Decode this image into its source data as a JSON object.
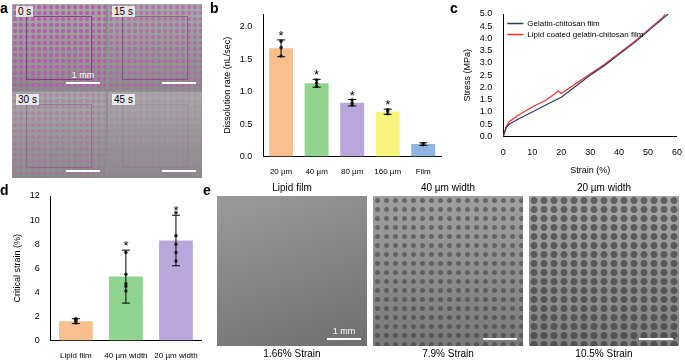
{
  "chart_data": [
    {
      "panel_label": "b",
      "type": "bar",
      "categories": [
        "20 µm",
        "40 µm",
        "80 µm",
        "160 µm",
        "Film"
      ],
      "values": [
        1.67,
        1.13,
        0.83,
        0.69,
        0.19
      ],
      "error": [
        0.13,
        0.06,
        0.05,
        0.04,
        0.02
      ],
      "points": [
        [
          1.55,
          1.68,
          1.78
        ],
        [
          1.08,
          1.13,
          1.18
        ],
        [
          0.79,
          0.82,
          0.87
        ],
        [
          0.66,
          0.7,
          0.72
        ],
        [
          0.18,
          0.19,
          0.2
        ]
      ],
      "significance": [
        "*",
        "*",
        "*",
        "*",
        null
      ],
      "colors": [
        "#f9c08f",
        "#8fd48f",
        "#b9a7dc",
        "#f6f47c",
        "#8fb6e2"
      ],
      "ylabel": "Dissolution rate (nL/sec)",
      "ylim": [
        0,
        2.2
      ],
      "yticks": [
        {
          "value": 0,
          "label": "0.0"
        },
        {
          "value": 0.5,
          "label": "0.5"
        },
        {
          "value": 1,
          "label": "1.0"
        },
        {
          "value": 1.5,
          "label": "1.5"
        },
        {
          "value": 2,
          "label": "2.0"
        }
      ],
      "grid": false
    },
    {
      "panel_label": "c",
      "type": "line",
      "series": [
        {
          "name": "Gelatin-chitosan film",
          "color": "#2f3a5f",
          "x": [
            0,
            1,
            2,
            5,
            10,
            15,
            20,
            25,
            30,
            35,
            40,
            45,
            50,
            55,
            57
          ],
          "values": [
            0,
            0.35,
            0.5,
            0.7,
            1.0,
            1.3,
            1.6,
            2.05,
            2.5,
            2.9,
            3.35,
            3.8,
            4.3,
            4.8,
            5.0
          ]
        },
        {
          "name": "Lipid coated gelatin-chitosan film",
          "color": "#e8312f",
          "x": [
            0,
            1,
            2,
            5,
            10,
            15,
            19,
            20,
            25,
            30,
            35,
            40,
            45,
            50,
            55,
            56
          ],
          "values": [
            0,
            0.4,
            0.6,
            0.85,
            1.2,
            1.5,
            1.85,
            1.75,
            2.15,
            2.55,
            2.95,
            3.4,
            3.85,
            4.35,
            4.85,
            5.0
          ]
        }
      ],
      "xlabel": "Strain (%)",
      "ylabel": "Stress (MPa)",
      "xlim": [
        0,
        60
      ],
      "xticks": [
        0,
        10,
        20,
        30,
        40,
        50,
        60
      ],
      "ylim": [
        0,
        5
      ],
      "yticks": [
        {
          "value": 0,
          "label": "0.0"
        },
        {
          "value": 0.5,
          "label": "0.5"
        },
        {
          "value": 1,
          "label": "1.0"
        },
        {
          "value": 1.5,
          "label": "1.5"
        },
        {
          "value": 2,
          "label": "2.0"
        },
        {
          "value": 2.5,
          "label": "2.5"
        },
        {
          "value": 3,
          "label": "3.0"
        },
        {
          "value": 3.5,
          "label": "3.5"
        },
        {
          "value": 4,
          "label": "4.0"
        },
        {
          "value": 4.5,
          "label": "4.5"
        },
        {
          "value": 5,
          "label": "5.0"
        }
      ],
      "legend": "top-left",
      "grid": false
    },
    {
      "panel_label": "d",
      "type": "bar",
      "categories": [
        "Lipid film",
        "40 µm width",
        "20 µm width"
      ],
      "values": [
        1.6,
        5.3,
        8.3
      ],
      "error": [
        0.2,
        2.2,
        2.1
      ],
      "points": [
        [
          1.45,
          1.6,
          1.7,
          1.75,
          1.8
        ],
        [
          4.1,
          4.5,
          4.7,
          5.5,
          7.3
        ],
        [
          6.6,
          7.3,
          8.0,
          8.7,
          10.6
        ]
      ],
      "significance": [
        null,
        "*",
        "*"
      ],
      "colors": [
        "#f9c08f",
        "#8fd48f",
        "#b9a7dc"
      ],
      "ylabel": "Critical strain (%)",
      "ylim": [
        0,
        12
      ],
      "yticks": [
        0,
        2,
        4,
        6,
        8,
        10,
        12
      ],
      "grid": false
    }
  ],
  "images": {
    "a": {
      "panel_label": "a",
      "frames": [
        {
          "label": "0 s",
          "scale_bar": "1 mm"
        },
        {
          "label": "15 s"
        },
        {
          "label": "30 s"
        },
        {
          "label": "45 s"
        }
      ]
    },
    "e": {
      "panel_label": "e",
      "frames": [
        {
          "title": "Lipid film",
          "caption": "1.66% Strain",
          "scale_bar": "1 mm"
        },
        {
          "title": "40 µm width",
          "caption": "7.9% Strain"
        },
        {
          "title": "20 µm width",
          "caption": "10.5% Strain"
        }
      ]
    }
  }
}
